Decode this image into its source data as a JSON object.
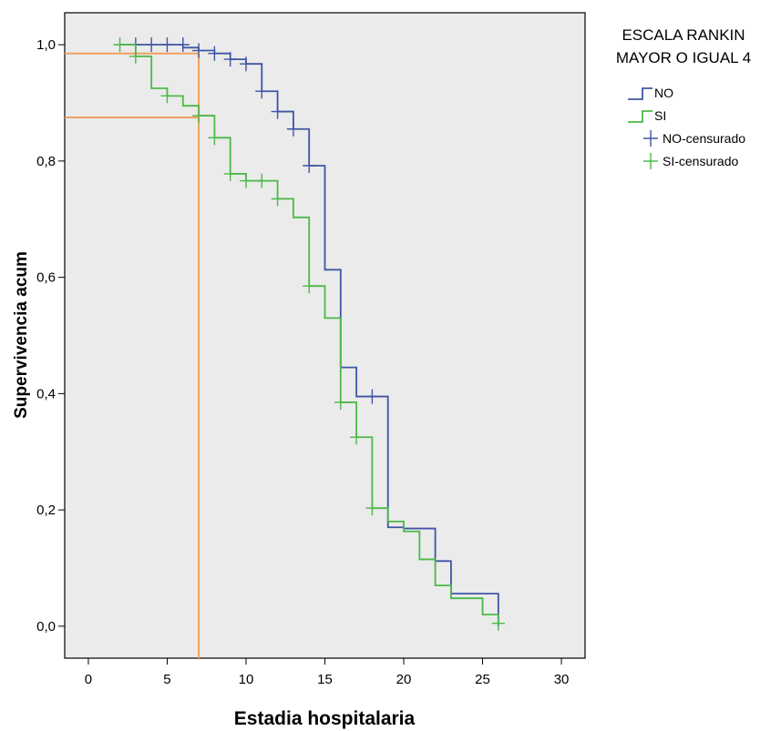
{
  "chart_data": {
    "type": "line",
    "subtype": "kaplan-meier-step",
    "xlabel": "Estadia hospitalaria",
    "ylabel": "Supervivencia acum",
    "xlim": [
      -1.5,
      31.5
    ],
    "ylim": [
      -0.055,
      1.055
    ],
    "x_ticks": [
      0,
      5,
      10,
      15,
      20,
      25,
      30
    ],
    "x_tick_labels": [
      "0",
      "5",
      "10",
      "15",
      "20",
      "25",
      "30"
    ],
    "y_ticks": [
      0.0,
      0.2,
      0.4,
      0.6,
      0.8,
      1.0
    ],
    "y_tick_labels": [
      "0,0",
      "0,2",
      "0,4",
      "0,6",
      "0,8",
      "1,0"
    ],
    "grid": false,
    "plot_background": "#ebebeb",
    "legend": {
      "position": "right",
      "title_lines": [
        "ESCALA RANKIN",
        "MAYOR O IGUAL 4"
      ],
      "entries": [
        {
          "label": "NO",
          "kind": "line",
          "color": "#4055a5"
        },
        {
          "label": "SI",
          "kind": "line",
          "color": "#4cb848"
        },
        {
          "label": "NO-censurado",
          "kind": "cross",
          "color": "#4055a5"
        },
        {
          "label": "SI-censurado",
          "kind": "cross",
          "color": "#4cb848"
        }
      ]
    },
    "series": [
      {
        "name": "NO",
        "color": "#4055a5",
        "steps": [
          [
            2,
            1.0
          ],
          [
            6,
            0.995
          ],
          [
            7,
            0.99
          ],
          [
            8,
            0.985
          ],
          [
            9,
            0.975
          ],
          [
            10,
            0.967
          ],
          [
            11,
            0.92
          ],
          [
            12,
            0.885
          ],
          [
            13,
            0.855
          ],
          [
            14,
            0.792
          ],
          [
            15,
            0.613
          ],
          [
            16,
            0.445
          ],
          [
            17,
            0.395
          ],
          [
            19,
            0.17
          ],
          [
            20,
            0.168
          ],
          [
            22,
            0.112
          ],
          [
            23,
            0.056
          ],
          [
            26,
            0.0
          ]
        ],
        "censored": [
          [
            3,
            1.0
          ],
          [
            4,
            1.0
          ],
          [
            5,
            1.0
          ],
          [
            6,
            1.0
          ],
          [
            7,
            0.99
          ],
          [
            8,
            0.985
          ],
          [
            9,
            0.975
          ],
          [
            10,
            0.967
          ],
          [
            11,
            0.92
          ],
          [
            12,
            0.885
          ],
          [
            13,
            0.855
          ],
          [
            14,
            0.792
          ],
          [
            18,
            0.395
          ]
        ]
      },
      {
        "name": "SI",
        "color": "#4cb848",
        "steps": [
          [
            2,
            1.0
          ],
          [
            3,
            0.98
          ],
          [
            4,
            0.925
          ],
          [
            5,
            0.912
          ],
          [
            6,
            0.895
          ],
          [
            7,
            0.878
          ],
          [
            8,
            0.84
          ],
          [
            9,
            0.778
          ],
          [
            10,
            0.766
          ],
          [
            11,
            0.766
          ],
          [
            12,
            0.735
          ],
          [
            13,
            0.703
          ],
          [
            14,
            0.585
          ],
          [
            15,
            0.53
          ],
          [
            16,
            0.385
          ],
          [
            17,
            0.325
          ],
          [
            18,
            0.203
          ],
          [
            19,
            0.18
          ],
          [
            20,
            0.163
          ],
          [
            21,
            0.115
          ],
          [
            22,
            0.07
          ],
          [
            23,
            0.048
          ],
          [
            25,
            0.02
          ],
          [
            26,
            0.005
          ]
        ],
        "censored": [
          [
            2,
            1.0
          ],
          [
            3,
            0.98
          ],
          [
            5,
            0.912
          ],
          [
            7,
            0.878
          ],
          [
            8,
            0.84
          ],
          [
            9,
            0.778
          ],
          [
            10,
            0.766
          ],
          [
            11,
            0.766
          ],
          [
            12,
            0.735
          ],
          [
            14,
            0.585
          ],
          [
            16,
            0.385
          ],
          [
            17,
            0.325
          ],
          [
            18,
            0.203
          ],
          [
            26,
            0.005
          ]
        ]
      }
    ],
    "annotations": {
      "color": "#f0a060",
      "vertical_line_x": 7.0,
      "horizontal_lines_y": [
        0.985,
        0.875
      ]
    }
  }
}
